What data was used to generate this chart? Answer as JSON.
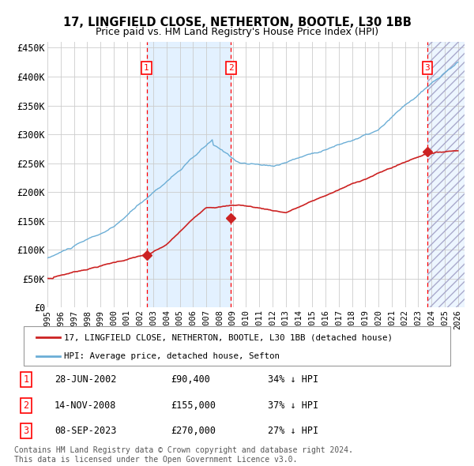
{
  "title": "17, LINGFIELD CLOSE, NETHERTON, BOOTLE, L30 1BB",
  "subtitle": "Price paid vs. HM Land Registry's House Price Index (HPI)",
  "ylim": [
    0,
    460000
  ],
  "yticks": [
    0,
    50000,
    100000,
    150000,
    200000,
    250000,
    300000,
    350000,
    400000,
    450000
  ],
  "ytick_labels": [
    "£0",
    "£50K",
    "£100K",
    "£150K",
    "£200K",
    "£250K",
    "£300K",
    "£350K",
    "£400K",
    "£450K"
  ],
  "xlim_start": 1995.0,
  "xlim_end": 2026.5,
  "xtick_years": [
    1995,
    1996,
    1997,
    1998,
    1999,
    2000,
    2001,
    2002,
    2003,
    2004,
    2005,
    2006,
    2007,
    2008,
    2009,
    2010,
    2011,
    2012,
    2013,
    2014,
    2015,
    2016,
    2017,
    2018,
    2019,
    2020,
    2021,
    2022,
    2023,
    2024,
    2025,
    2026
  ],
  "sale_dates": [
    2002.49,
    2008.87,
    2023.69
  ],
  "sale_prices": [
    90400,
    155000,
    270000
  ],
  "sale_labels": [
    "1",
    "2",
    "3"
  ],
  "sale_info": [
    {
      "num": "1",
      "date": "28-JUN-2002",
      "price": "£90,400",
      "hpi": "34% ↓ HPI"
    },
    {
      "num": "2",
      "date": "14-NOV-2008",
      "price": "£155,000",
      "hpi": "37% ↓ HPI"
    },
    {
      "num": "3",
      "date": "08-SEP-2023",
      "price": "£270,000",
      "hpi": "27% ↓ HPI"
    }
  ],
  "hpi_color": "#6baed6",
  "price_color": "#cc2222",
  "bg_shade_color": "#ddeeff",
  "footnote": "Contains HM Land Registry data © Crown copyright and database right 2024.\nThis data is licensed under the Open Government Licence v3.0.",
  "legend1": "17, LINGFIELD CLOSE, NETHERTON, BOOTLE, L30 1BB (detached house)",
  "legend2": "HPI: Average price, detached house, Sefton"
}
